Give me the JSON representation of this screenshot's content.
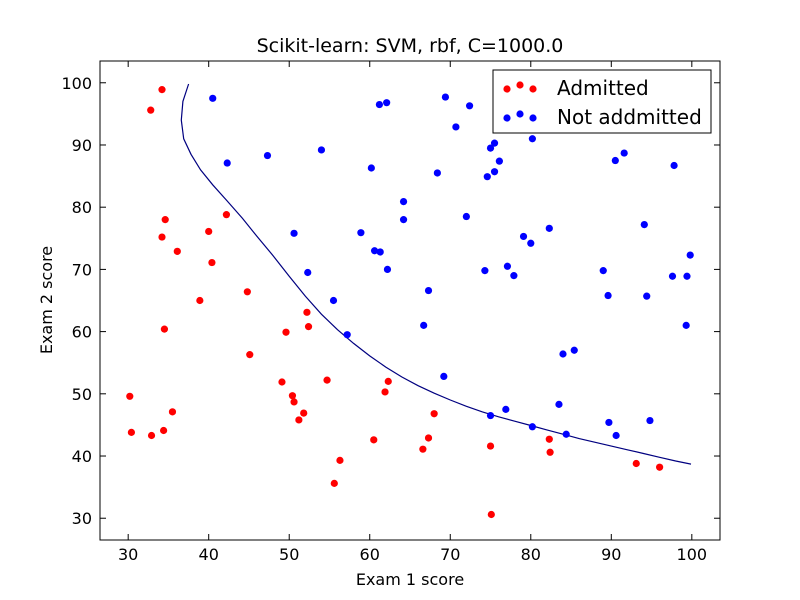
{
  "chart_data": {
    "type": "scatter",
    "title": "Scikit-learn: SVM, rbf, C=1000.0",
    "xlabel": "Exam 1 score",
    "ylabel": "Exam 2 score",
    "xlim": [
      26.5,
      103.5
    ],
    "ylim": [
      26.5,
      103.5
    ],
    "xticks": [
      30,
      40,
      50,
      60,
      70,
      80,
      90,
      100
    ],
    "yticks": [
      30,
      40,
      50,
      60,
      70,
      80,
      90,
      100
    ],
    "xtick_labels": [
      "30",
      "40",
      "50",
      "60",
      "70",
      "80",
      "90",
      "100"
    ],
    "ytick_labels": [
      "30",
      "40",
      "50",
      "60",
      "70",
      "80",
      "90",
      "100"
    ],
    "grid": false,
    "legend_position": "top-right",
    "series": [
      {
        "name": "Admitted",
        "color": "#ff0000",
        "points": [
          [
            32.8,
            95.6
          ],
          [
            34.2,
            98.9
          ],
          [
            34.6,
            78.0
          ],
          [
            34.2,
            75.2
          ],
          [
            36.1,
            72.9
          ],
          [
            40.0,
            76.1
          ],
          [
            40.4,
            71.1
          ],
          [
            42.2,
            78.8
          ],
          [
            38.9,
            65.0
          ],
          [
            34.5,
            60.4
          ],
          [
            30.2,
            49.6
          ],
          [
            30.4,
            43.8
          ],
          [
            32.9,
            43.3
          ],
          [
            34.4,
            44.1
          ],
          [
            35.5,
            47.1
          ],
          [
            44.8,
            66.4
          ],
          [
            45.1,
            56.3
          ],
          [
            49.6,
            59.9
          ],
          [
            52.2,
            63.1
          ],
          [
            52.4,
            60.8
          ],
          [
            49.1,
            51.9
          ],
          [
            50.4,
            49.7
          ],
          [
            50.6,
            48.7
          ],
          [
            51.2,
            45.8
          ],
          [
            51.8,
            46.9
          ],
          [
            54.7,
            52.2
          ],
          [
            62.3,
            52.0
          ],
          [
            61.9,
            50.3
          ],
          [
            68.0,
            46.8
          ],
          [
            60.5,
            42.6
          ],
          [
            67.3,
            42.9
          ],
          [
            66.6,
            41.1
          ],
          [
            56.3,
            39.3
          ],
          [
            55.6,
            35.6
          ],
          [
            75.0,
            41.6
          ],
          [
            82.3,
            42.7
          ],
          [
            82.4,
            40.6
          ],
          [
            93.1,
            38.8
          ],
          [
            96.0,
            38.2
          ],
          [
            75.1,
            30.6
          ]
        ]
      },
      {
        "name": "Not addmitted",
        "color": "#0000ff",
        "points": [
          [
            40.5,
            97.5
          ],
          [
            42.3,
            87.1
          ],
          [
            47.3,
            88.3
          ],
          [
            54.0,
            89.2
          ],
          [
            61.2,
            96.5
          ],
          [
            62.1,
            96.8
          ],
          [
            69.4,
            97.7
          ],
          [
            70.7,
            92.9
          ],
          [
            72.4,
            96.3
          ],
          [
            60.2,
            86.3
          ],
          [
            68.4,
            85.5
          ],
          [
            64.2,
            80.9
          ],
          [
            64.2,
            78.0
          ],
          [
            58.9,
            75.9
          ],
          [
            50.6,
            75.8
          ],
          [
            60.6,
            73.0
          ],
          [
            61.3,
            72.8
          ],
          [
            62.2,
            70.0
          ],
          [
            52.3,
            69.5
          ],
          [
            55.5,
            65.0
          ],
          [
            57.2,
            59.5
          ],
          [
            67.3,
            66.6
          ],
          [
            66.7,
            61.0
          ],
          [
            69.2,
            52.8
          ],
          [
            72.0,
            78.5
          ],
          [
            75.0,
            89.5
          ],
          [
            75.5,
            90.3
          ],
          [
            76.1,
            87.4
          ],
          [
            74.6,
            84.9
          ],
          [
            75.5,
            85.7
          ],
          [
            80.2,
            91.0
          ],
          [
            74.3,
            69.8
          ],
          [
            77.1,
            70.5
          ],
          [
            77.9,
            69.0
          ],
          [
            79.1,
            75.3
          ],
          [
            80.0,
            74.2
          ],
          [
            82.3,
            76.6
          ],
          [
            85.4,
            57.0
          ],
          [
            84.0,
            56.4
          ],
          [
            83.5,
            48.3
          ],
          [
            75.0,
            46.5
          ],
          [
            76.9,
            47.5
          ],
          [
            80.2,
            44.7
          ],
          [
            84.4,
            43.5
          ],
          [
            89.0,
            69.8
          ],
          [
            89.6,
            65.8
          ],
          [
            90.5,
            87.5
          ],
          [
            91.6,
            88.7
          ],
          [
            94.1,
            77.2
          ],
          [
            94.4,
            65.7
          ],
          [
            97.8,
            86.7
          ],
          [
            97.6,
            68.9
          ],
          [
            99.4,
            68.9
          ],
          [
            99.8,
            72.3
          ],
          [
            99.3,
            61.0
          ],
          [
            89.7,
            45.4
          ],
          [
            90.6,
            43.3
          ],
          [
            94.8,
            45.7
          ]
        ]
      }
    ],
    "decision_boundary": {
      "color": "#000080",
      "points": [
        [
          37.5,
          99.8
        ],
        [
          36.8,
          97.0
        ],
        [
          36.6,
          94.0
        ],
        [
          36.9,
          91.0
        ],
        [
          37.8,
          88.5
        ],
        [
          39.0,
          86.0
        ],
        [
          40.5,
          83.6
        ],
        [
          42.3,
          81.0
        ],
        [
          44.2,
          78.2
        ],
        [
          46.0,
          75.3
        ],
        [
          48.0,
          72.2
        ],
        [
          50.0,
          68.9
        ],
        [
          52.0,
          65.7
        ],
        [
          54.0,
          62.8
        ],
        [
          56.0,
          60.3
        ],
        [
          58.0,
          58.1
        ],
        [
          60.0,
          56.1
        ],
        [
          62.0,
          54.3
        ],
        [
          64.0,
          52.7
        ],
        [
          66.0,
          51.3
        ],
        [
          68.0,
          50.1
        ],
        [
          70.0,
          49.0
        ],
        [
          72.0,
          48.0
        ],
        [
          74.0,
          47.1
        ],
        [
          76.0,
          46.3
        ],
        [
          78.0,
          45.6
        ],
        [
          80.0,
          44.9
        ],
        [
          82.0,
          44.2
        ],
        [
          84.0,
          43.5
        ],
        [
          86.0,
          42.8
        ],
        [
          88.0,
          42.2
        ],
        [
          90.0,
          41.6
        ],
        [
          92.0,
          41.0
        ],
        [
          94.0,
          40.4
        ],
        [
          96.0,
          39.8
        ],
        [
          98.0,
          39.2
        ],
        [
          99.9,
          38.7
        ]
      ]
    }
  }
}
